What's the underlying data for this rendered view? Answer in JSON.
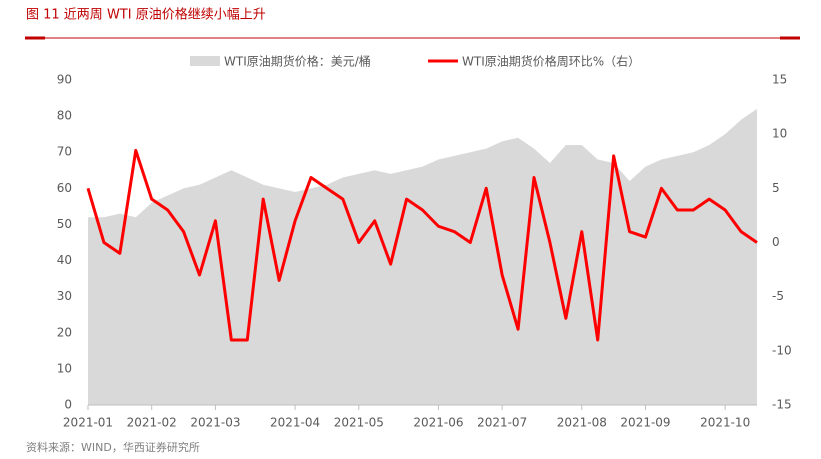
{
  "header": {
    "title": "图 11   近两周 WTI 原油价格继续小幅上升"
  },
  "source": "资料来源：WIND，华西证券研究所",
  "chart_data": {
    "type": "area-line",
    "categories": [
      "2021-01",
      null,
      null,
      null,
      "2021-02",
      null,
      null,
      null,
      "2021-03",
      null,
      null,
      null,
      null,
      "2021-04",
      null,
      null,
      null,
      "2021-05",
      null,
      null,
      null,
      null,
      "2021-06",
      null,
      null,
      null,
      "2021-07",
      null,
      null,
      null,
      null,
      "2021-08",
      null,
      null,
      null,
      "2021-09",
      null,
      null,
      null,
      null,
      "2021-10",
      null,
      null
    ],
    "series": [
      {
        "name": "WTI原油期货价格：美元/桶",
        "color": "#d9d9d9",
        "axis": "y",
        "values": [
          52,
          52,
          53,
          52,
          56,
          58,
          60,
          61,
          63,
          65,
          63,
          61,
          60,
          59,
          60,
          61,
          63,
          64,
          65,
          64,
          65,
          66,
          68,
          69,
          70,
          71,
          73,
          74,
          71,
          67,
          72,
          72,
          68,
          67,
          62,
          66,
          68,
          69,
          70,
          72,
          75,
          79,
          82
        ]
      },
      {
        "name": "WTI原油期货价格周环比%（右）",
        "color": "#ff0000",
        "axis": "y2",
        "values": [
          5,
          0,
          -1,
          8.5,
          4,
          3,
          1,
          -3,
          2,
          -9,
          -9,
          4,
          -3.5,
          2,
          6,
          5,
          4,
          0,
          2,
          -2,
          4,
          3,
          1.5,
          1,
          0,
          5,
          -3,
          -8,
          6,
          0,
          -7,
          1,
          -9,
          8,
          1,
          0.5,
          5,
          3,
          3,
          4,
          3,
          1,
          0
        ]
      }
    ],
    "ylim": [
      0,
      90
    ],
    "yticks": [
      0,
      10,
      20,
      30,
      40,
      50,
      60,
      70,
      80,
      90
    ],
    "y2lim": [
      -15,
      15
    ],
    "y2ticks": [
      -15,
      -10,
      -5,
      0,
      5,
      10,
      15
    ],
    "legend": "top"
  }
}
